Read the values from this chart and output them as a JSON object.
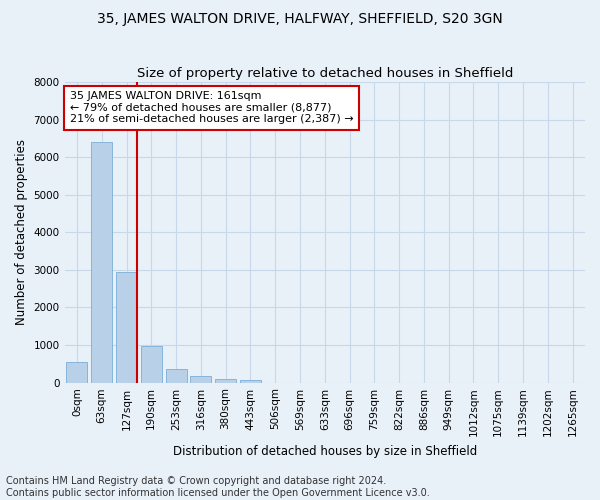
{
  "title": "35, JAMES WALTON DRIVE, HALFWAY, SHEFFIELD, S20 3GN",
  "subtitle": "Size of property relative to detached houses in Sheffield",
  "xlabel": "Distribution of detached houses by size in Sheffield",
  "ylabel": "Number of detached properties",
  "bar_labels": [
    "0sqm",
    "63sqm",
    "127sqm",
    "190sqm",
    "253sqm",
    "316sqm",
    "380sqm",
    "443sqm",
    "506sqm",
    "569sqm",
    "633sqm",
    "696sqm",
    "759sqm",
    "822sqm",
    "886sqm",
    "949sqm",
    "1012sqm",
    "1075sqm",
    "1139sqm",
    "1202sqm",
    "1265sqm"
  ],
  "bar_values": [
    560,
    6400,
    2950,
    960,
    370,
    175,
    105,
    80,
    0,
    0,
    0,
    0,
    0,
    0,
    0,
    0,
    0,
    0,
    0,
    0,
    0
  ],
  "bar_color": "#b8d0e8",
  "bar_edge_color": "#7aaed6",
  "grid_color": "#c8d8ea",
  "background_color": "#e8f0f8",
  "vline_color": "#cc0000",
  "vline_x_index": 2,
  "annotation_text": "35 JAMES WALTON DRIVE: 161sqm\n← 79% of detached houses are smaller (8,877)\n21% of semi-detached houses are larger (2,387) →",
  "annotation_box_color": "#ffffff",
  "annotation_border_color": "#cc0000",
  "ylim": [
    0,
    8000
  ],
  "yticks": [
    0,
    1000,
    2000,
    3000,
    4000,
    5000,
    6000,
    7000,
    8000
  ],
  "footer_text": "Contains HM Land Registry data © Crown copyright and database right 2024.\nContains public sector information licensed under the Open Government Licence v3.0.",
  "title_fontsize": 10,
  "subtitle_fontsize": 9.5,
  "axis_label_fontsize": 8.5,
  "tick_fontsize": 7.5,
  "annotation_fontsize": 8,
  "footer_fontsize": 7
}
